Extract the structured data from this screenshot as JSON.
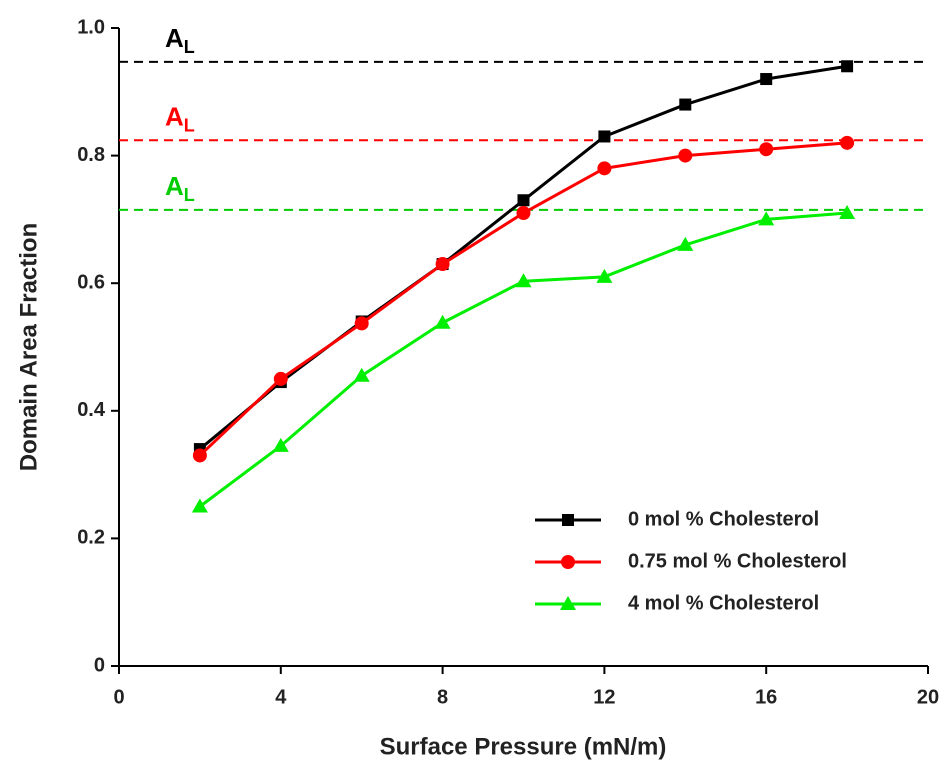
{
  "chart_data": {
    "type": "line",
    "xlabel": "Surface Pressure (mN/m)",
    "ylabel": "Domain Area Fraction",
    "x": [
      2,
      4,
      6,
      8,
      10,
      12,
      14,
      16,
      18
    ],
    "series": [
      {
        "name": "0 mol % Cholesterol",
        "color": "#000000",
        "marker": "square",
        "values": [
          0.34,
          0.445,
          0.54,
          0.63,
          0.73,
          0.83,
          0.88,
          0.92,
          0.94
        ]
      },
      {
        "name": "0.75 mol % Cholesterol",
        "color": "#ff0000",
        "marker": "circle",
        "values": [
          0.33,
          0.45,
          0.537,
          0.63,
          0.71,
          0.78,
          0.8,
          0.81,
          0.82
        ]
      },
      {
        "name": "4 mol % Cholesterol",
        "color": "#00ee00",
        "marker": "triangle",
        "values": [
          0.25,
          0.345,
          0.455,
          0.538,
          0.603,
          0.61,
          0.66,
          0.7,
          0.71
        ]
      }
    ],
    "reference_lines": [
      {
        "value": 0.947,
        "color": "#000000",
        "label": "A",
        "label_sub": "L"
      },
      {
        "value": 0.824,
        "color": "#ff0000",
        "label": "A",
        "label_sub": "L"
      },
      {
        "value": 0.715,
        "color": "#00cc00",
        "label": "A",
        "label_sub": "L"
      }
    ],
    "xlim": [
      0,
      20
    ],
    "xticks": [
      0,
      4,
      8,
      12,
      16,
      20
    ],
    "ylim": [
      0,
      1
    ],
    "yticks": [
      0,
      0.2,
      0.4,
      0.6,
      0.8,
      {
        "value": 1,
        "label": "1.0"
      }
    ],
    "legend": "lower right"
  }
}
